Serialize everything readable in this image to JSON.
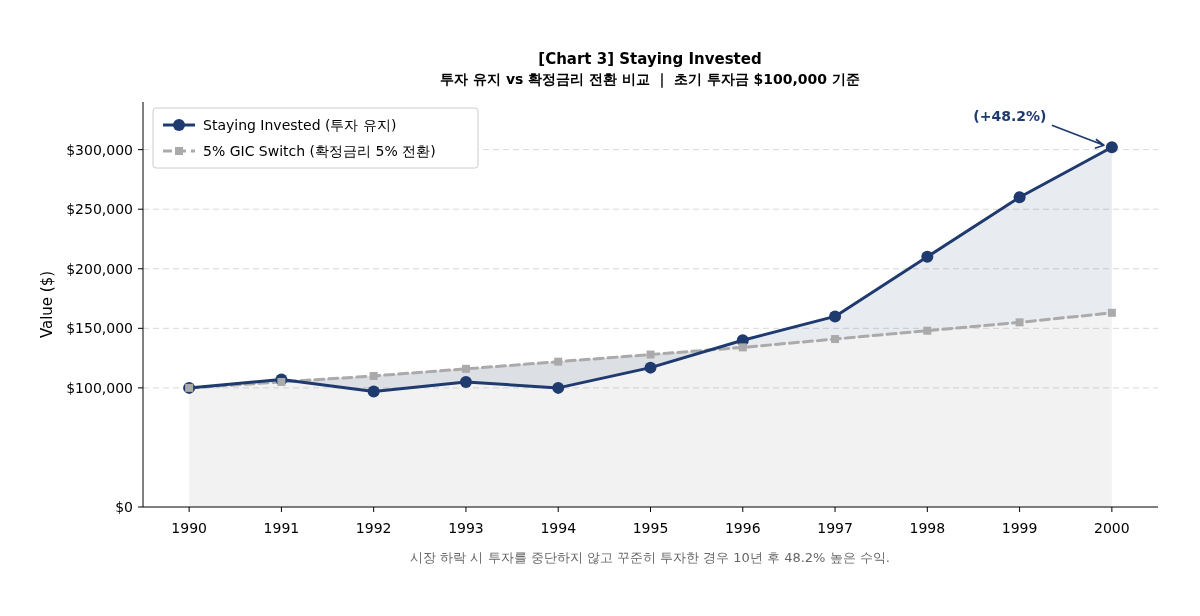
{
  "chart_data": {
    "type": "line",
    "title": "[Chart 3]  Staying Invested",
    "subtitle": "투자 유지 vs 확정금리 전환 비교  ｜  초기 투자금 $100,000 기준",
    "ylabel": "Value ($)",
    "x": [
      1990,
      1991,
      1992,
      1993,
      1994,
      1995,
      1996,
      1997,
      1998,
      1999,
      2000
    ],
    "series": [
      {
        "name": "5% GIC Switch (확정금리 5% 전환)",
        "type": "area",
        "color": "#aaaaaa",
        "marker": "square",
        "line_style": "dashed",
        "values": [
          100000,
          105000,
          110000,
          116000,
          122000,
          128000,
          134000,
          141000,
          148000,
          155000,
          163000
        ]
      },
      {
        "name": "Staying Invested (투자 유지)",
        "color": "#1f3a6e",
        "marker": "circle",
        "line_style": "solid",
        "values": [
          100000,
          107000,
          97000,
          105000,
          100000,
          117000,
          140000,
          160000,
          210000,
          260000,
          302000
        ],
        "lower": [
          100000,
          105000,
          110000,
          116000,
          122000,
          128000,
          134000,
          141000,
          148000,
          155000,
          163000
        ],
        "upper": [
          100000,
          107000,
          97000,
          105000,
          100000,
          117000,
          140000,
          160000,
          210000,
          260000,
          302000
        ]
      }
    ],
    "xlim": [
      1989.5,
      2000.5
    ],
    "xticks": [
      1990,
      1991,
      1992,
      1993,
      1994,
      1995,
      1996,
      1997,
      1998,
      1999,
      2000
    ],
    "ylim": [
      0,
      340000
    ],
    "yticks": [
      {
        "value": 0,
        "label": "$0"
      },
      {
        "value": 100000,
        "label": "$100,000"
      },
      {
        "value": 150000,
        "label": "$150,000"
      },
      {
        "value": 200000,
        "label": "$200,000"
      },
      {
        "value": 250000,
        "label": "$250,000"
      },
      {
        "value": 300000,
        "label": "$300,000"
      }
    ],
    "grid": "y",
    "legend": "top left",
    "annotations": [
      {
        "text": "(+48.2%)",
        "x": 2000,
        "y": 302000
      },
      "시장 하락 시 투자를 중단하지 않고 꾸준히 투자한 경우 10년 후 48.2% 높은 수익."
    ]
  }
}
